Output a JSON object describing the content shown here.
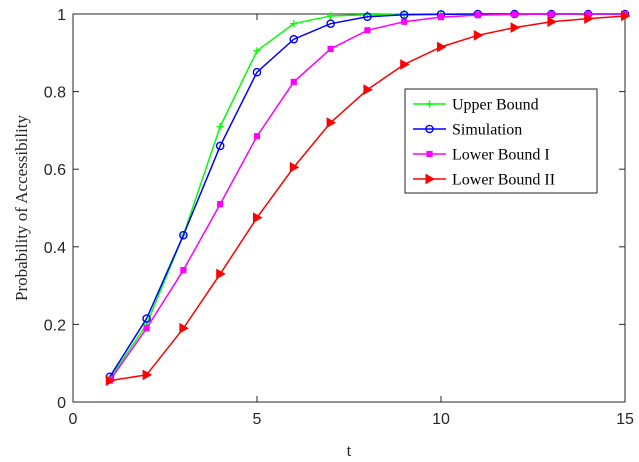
{
  "chart_data": {
    "type": "line",
    "title": "",
    "xlabel": "t",
    "ylabel": "Probability of Accessibility",
    "xlim": [
      0,
      15
    ],
    "ylim": [
      0,
      1
    ],
    "x_ticks": [
      0,
      5,
      10,
      15
    ],
    "y_ticks": [
      0,
      0.2,
      0.4,
      0.6,
      0.8,
      1
    ],
    "x_tick_labels": [
      "0",
      "5",
      "10",
      "15"
    ],
    "y_tick_labels": [
      "0",
      "0.2",
      "0.4",
      "0.6",
      "0.8",
      "1"
    ],
    "grid": false,
    "legend_position": "right",
    "x": [
      1,
      2,
      3,
      4,
      5,
      6,
      7,
      8,
      9,
      10,
      11,
      12,
      13,
      14,
      15
    ],
    "series": [
      {
        "name": "Upper Bound",
        "color": "#00ff00",
        "marker": "plus",
        "values": [
          0.06,
          0.2,
          0.43,
          0.71,
          0.905,
          0.975,
          0.995,
          0.998,
          1.0,
          1.0,
          1.0,
          1.0,
          1.0,
          1.0,
          1.0
        ]
      },
      {
        "name": "Simulation",
        "color": "#0000ff",
        "marker": "circle",
        "values": [
          0.065,
          0.215,
          0.43,
          0.66,
          0.85,
          0.935,
          0.975,
          0.993,
          0.998,
          0.999,
          1.0,
          1.0,
          1.0,
          1.0,
          1.0
        ]
      },
      {
        "name": "Lower Bound I",
        "color": "#ff00ff",
        "marker": "square",
        "values": [
          0.055,
          0.19,
          0.34,
          0.51,
          0.685,
          0.825,
          0.91,
          0.958,
          0.98,
          0.992,
          0.997,
          0.999,
          1.0,
          1.0,
          1.0
        ]
      },
      {
        "name": "Lower Bound II",
        "color": "#ff0000",
        "marker": "triangle-right",
        "values": [
          0.055,
          0.07,
          0.19,
          0.33,
          0.475,
          0.605,
          0.72,
          0.805,
          0.87,
          0.915,
          0.945,
          0.965,
          0.98,
          0.988,
          0.995
        ]
      }
    ]
  }
}
